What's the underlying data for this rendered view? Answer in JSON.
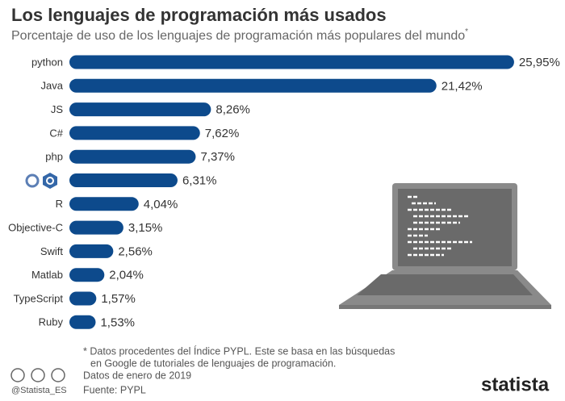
{
  "title": "Los lenguajes de programación más usados",
  "subtitle": "Porcentaje de uso de los lenguajes de programación más populares del mundo",
  "subtitle_mark": "*",
  "chart_data": {
    "type": "bar",
    "orientation": "horizontal",
    "color": "#0d4a8c",
    "categories": [
      "python",
      "Java",
      "JS",
      "C#",
      "php",
      null,
      "R",
      "Objective-C",
      "Swift",
      "Matlab",
      "TypeScript",
      "Ruby"
    ],
    "values": [
      25.95,
      21.42,
      8.26,
      7.62,
      7.37,
      6.31,
      4.04,
      3.15,
      2.56,
      2.04,
      1.57,
      1.53
    ],
    "value_labels": [
      "25,95%",
      "21,42%",
      "8,26%",
      "7,62%",
      "7,37%",
      "6,31%",
      "4,04%",
      "3,15%",
      "2,56%",
      "2,04%",
      "1,57%",
      "1,53%"
    ]
  },
  "footnote": [
    "* Datos procedentes del Índice PYPL. Este se basa en las búsquedas",
    "en Google de tutoriales de lenguajes de programación."
  ],
  "date_note": "Datos de enero de 2019",
  "source": "Fuente: PYPL",
  "handle": "@Statista_ES",
  "brand": "statista"
}
